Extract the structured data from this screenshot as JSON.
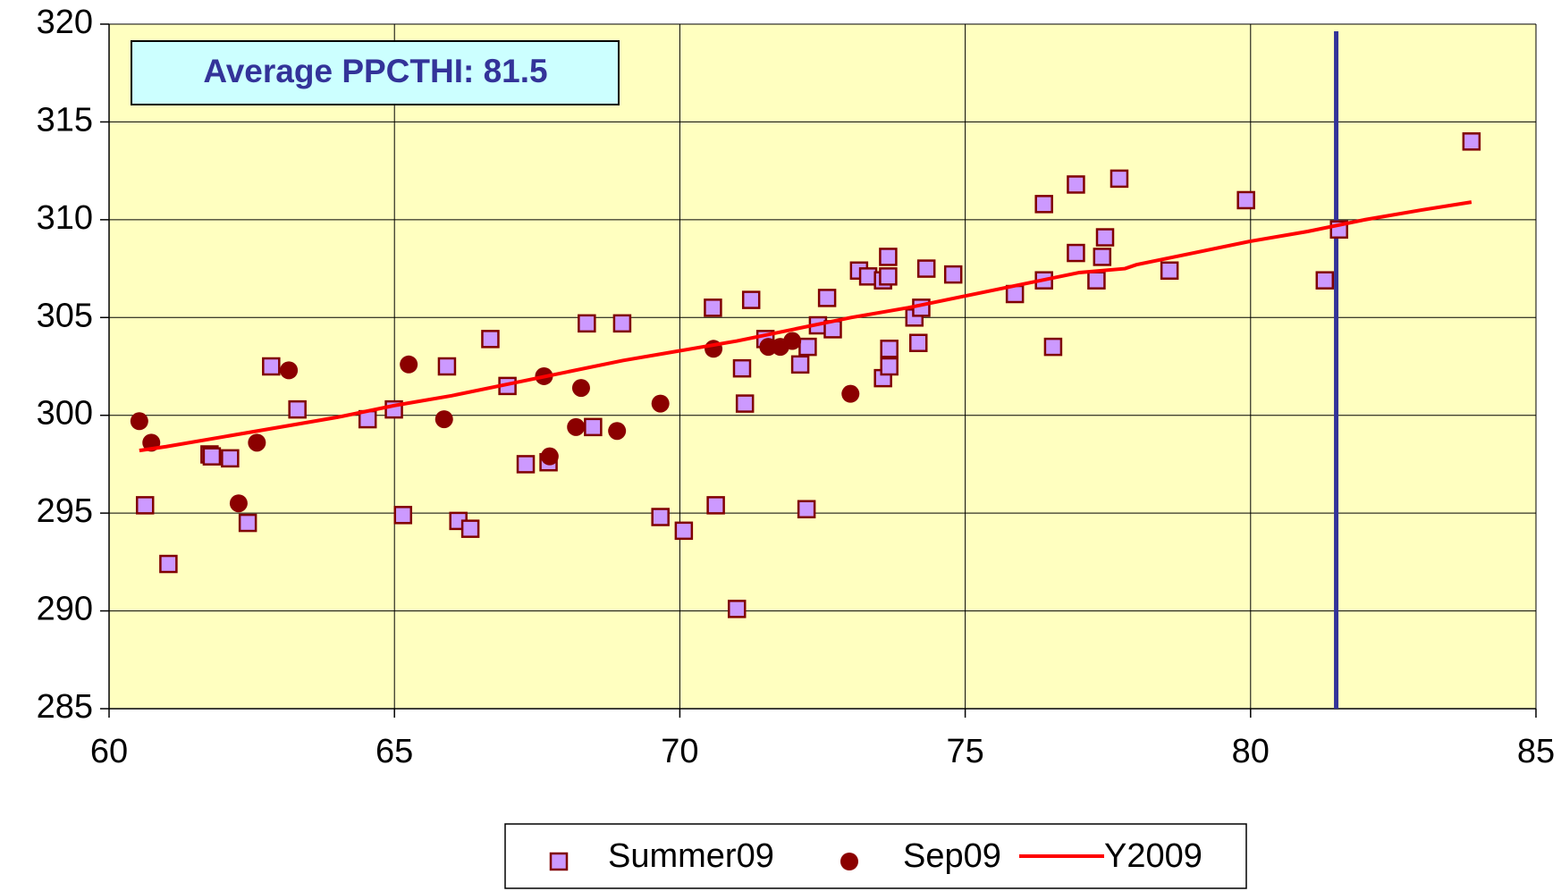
{
  "chart_data": {
    "type": "scatter",
    "annotation": "Average PPCTHI: 81.5",
    "average_x": 81.5,
    "average_color": "#333399",
    "xlim": [
      60,
      85
    ],
    "xticks": [
      60,
      65,
      70,
      75,
      80,
      85
    ],
    "ylim": [
      285,
      320
    ],
    "yticks": [
      285,
      290,
      295,
      300,
      305,
      310,
      315,
      320
    ],
    "grid": true,
    "legend": "bottom",
    "series": [
      {
        "name": "Summer09",
        "type": "scatter",
        "marker": "square",
        "color": "#cc99ff",
        "x": [
          60.63,
          61.04,
          61.76,
          61.8,
          62.12,
          62.43,
          62.84,
          63.3,
          64.53,
          64.99,
          65.15,
          65.92,
          66.12,
          66.33,
          66.68,
          66.98,
          67.3,
          67.7,
          68.37,
          68.48,
          68.99,
          69.66,
          70.07,
          70.58,
          70.63,
          71.0,
          71.09,
          71.14,
          71.25,
          71.5,
          72.11,
          72.22,
          72.24,
          72.42,
          72.58,
          72.68,
          73.14,
          73.3,
          73.56,
          73.56,
          73.65,
          73.65,
          73.67,
          73.67,
          74.11,
          74.18,
          74.23,
          74.32,
          74.79,
          75.87,
          76.38,
          76.38,
          76.54,
          76.94,
          76.94,
          77.3,
          77.4,
          77.45,
          77.7,
          78.58,
          79.92,
          81.3,
          81.55,
          83.87
        ],
        "y": [
          295.4,
          292.4,
          298.0,
          297.9,
          297.8,
          294.5,
          302.5,
          300.3,
          299.8,
          300.3,
          294.9,
          302.5,
          294.6,
          294.2,
          303.9,
          301.5,
          297.5,
          297.6,
          304.7,
          299.4,
          304.7,
          294.8,
          294.1,
          305.5,
          295.4,
          290.1,
          302.4,
          300.6,
          305.9,
          303.9,
          302.6,
          295.2,
          303.5,
          304.6,
          306.0,
          304.4,
          307.4,
          307.1,
          301.9,
          306.9,
          308.1,
          307.1,
          303.4,
          302.5,
          305.0,
          303.7,
          305.5,
          307.5,
          307.2,
          306.2,
          310.8,
          306.9,
          303.5,
          311.8,
          308.3,
          306.9,
          308.1,
          309.1,
          312.1,
          307.4,
          311.0,
          306.9,
          309.5,
          314.0
        ]
      },
      {
        "name": "Sep09",
        "type": "scatter",
        "marker": "circle",
        "color": "#8b0000",
        "x": [
          60.53,
          60.74,
          62.27,
          62.59,
          63.15,
          65.25,
          65.87,
          67.62,
          67.72,
          68.18,
          68.27,
          68.9,
          69.66,
          70.59,
          71.55,
          71.76,
          71.97,
          72.99
        ],
        "y": [
          299.7,
          298.6,
          295.5,
          298.6,
          302.3,
          302.6,
          299.8,
          302.0,
          297.9,
          299.4,
          301.4,
          299.2,
          300.6,
          303.4,
          303.5,
          303.5,
          303.8,
          301.1
        ]
      },
      {
        "name": "Y2009",
        "type": "line",
        "color": "#ff0000",
        "x": [
          60.53,
          61,
          62,
          63,
          64,
          65,
          66,
          67,
          68,
          69,
          70,
          71,
          72,
          73,
          74,
          75,
          76,
          77,
          77.8,
          78,
          79,
          80,
          81,
          82,
          83,
          83.87
        ],
        "y": [
          298.2,
          298.4,
          298.9,
          299.4,
          299.9,
          300.5,
          301.0,
          301.6,
          302.2,
          302.8,
          303.3,
          303.8,
          304.4,
          305.0,
          305.5,
          306.1,
          306.7,
          307.3,
          307.5,
          307.7,
          308.3,
          308.9,
          309.4,
          310.0,
          310.5,
          310.9
        ]
      }
    ]
  }
}
